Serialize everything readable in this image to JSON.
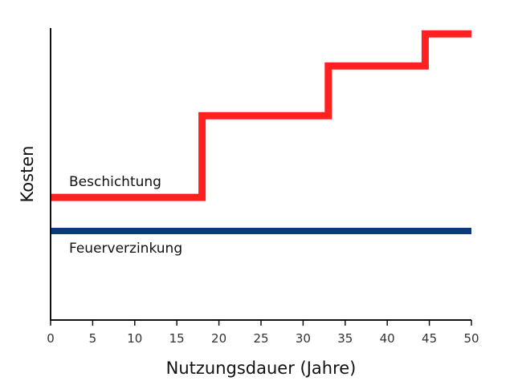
{
  "chart_data": {
    "type": "line",
    "xlabel": "Nutzungsdauer (Jahre)",
    "ylabel": "Kosten",
    "xlim": [
      0,
      50
    ],
    "ylim": [
      0,
      100
    ],
    "x_ticks": [
      0,
      5,
      10,
      15,
      20,
      25,
      30,
      35,
      40,
      45,
      50
    ],
    "x_tick_labels": [
      "0",
      "5",
      "10",
      "15",
      "20",
      "25",
      "30",
      "35",
      "40",
      "45",
      "50"
    ],
    "grid": false,
    "series": [
      {
        "name": "Beschichtung",
        "color": "#ff2020",
        "step": true,
        "x": [
          0,
          18,
          18,
          33,
          33,
          44.5,
          44.5,
          50
        ],
        "y": [
          42,
          42,
          70,
          70,
          87,
          87,
          98,
          98
        ]
      },
      {
        "name": "Feuerverzinkung",
        "color": "#0b3a7a",
        "step": false,
        "x": [
          0,
          50
        ],
        "y": [
          30.5,
          30.5
        ]
      }
    ]
  }
}
